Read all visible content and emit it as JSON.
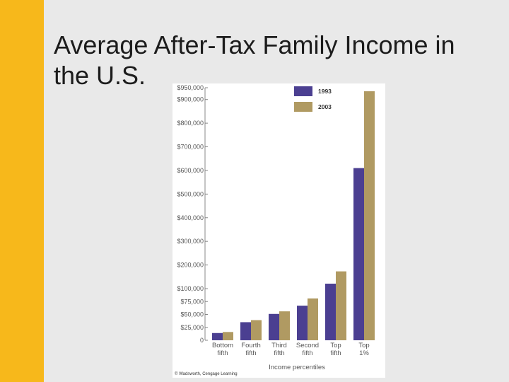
{
  "slide": {
    "title": "Average After-Tax Family Income in the U.S."
  },
  "colors": {
    "accent_bar": "#f7b81b",
    "background": "#e9e9e9",
    "series_1993": "#4b3f91",
    "series_2003": "#b09a62"
  },
  "chart_data": {
    "type": "bar",
    "categories": [
      "Bottom fifth",
      "Fourth fifth",
      "Third fifth",
      "Second fifth",
      "Top fifth",
      "Top 1%"
    ],
    "category_lines": [
      [
        "Bottom",
        "fifth"
      ],
      [
        "Fourth",
        "fifth"
      ],
      [
        "Third",
        "fifth"
      ],
      [
        "Second",
        "fifth"
      ],
      [
        "Top",
        "fifth"
      ],
      [
        "Top",
        "1%"
      ]
    ],
    "series": [
      {
        "name": "1993",
        "color": "#4b3f91",
        "values": [
          14000,
          35000,
          51000,
          67000,
          121000,
          610000
        ]
      },
      {
        "name": "2003",
        "color": "#b09a62",
        "values": [
          16000,
          39000,
          56000,
          81000,
          173000,
          935000
        ]
      }
    ],
    "xlabel": "Income percentiles",
    "ylabel": "",
    "yticks": [
      0,
      25000,
      50000,
      75000,
      100000,
      200000,
      300000,
      400000,
      500000,
      600000,
      700000,
      800000,
      900000,
      950000
    ],
    "ytick_labels": [
      "0",
      "$25,000",
      "$50,000",
      "$75,000",
      "$100,000",
      "$200,000",
      "$300,000",
      "$400,000",
      "$500,000",
      "$600,000",
      "$700,000",
      "$800,000",
      "$900,000",
      "$950,000"
    ],
    "ylim": [
      0,
      950000
    ],
    "scale": "piecewise: 0–100,000 expanded, 100,000–950,000 compressed",
    "legend": "top-right",
    "grid": false,
    "credit": "© Wadsworth, Cengage Learning"
  }
}
